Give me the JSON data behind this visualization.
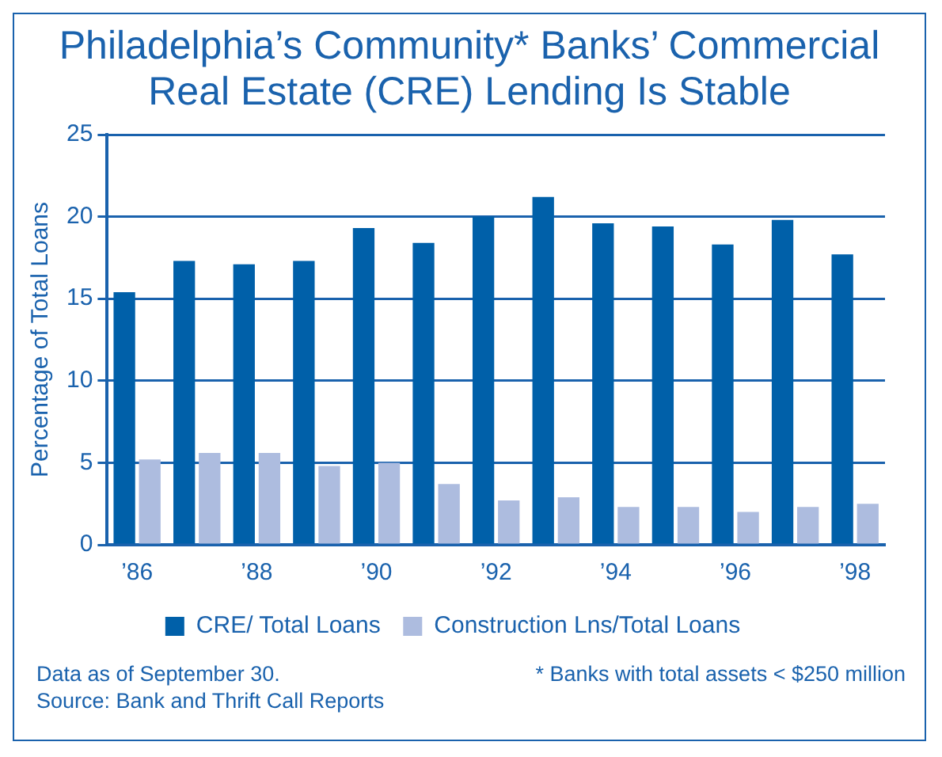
{
  "chart_data": {
    "type": "bar",
    "title": "Philadelphia’s Community* Banks’ Commercial Real Estate (CRE) Lending Is Stable",
    "ylabel": "Percentage of Total Loans",
    "categories": [
      "’86",
      null,
      "’88",
      null,
      "’90",
      null,
      "’92",
      null,
      "’94",
      null,
      "’96",
      null,
      "’98"
    ],
    "series": [
      {
        "name": "CRE/ Total Loans",
        "color": "#0060a9",
        "values": [
          15.4,
          17.3,
          17.1,
          17.3,
          19.3,
          18.4,
          20.0,
          21.2,
          19.6,
          19.4,
          18.3,
          19.8,
          17.7
        ]
      },
      {
        "name": "Construction Lns/Total Loans",
        "color": "#adbcdf",
        "values": [
          5.2,
          5.6,
          5.6,
          4.8,
          5.0,
          3.7,
          2.7,
          2.9,
          2.3,
          2.3,
          2.0,
          2.3,
          2.5
        ]
      }
    ],
    "ylim": [
      0,
      25
    ],
    "yticks": [
      0,
      5,
      10,
      15,
      20,
      25
    ],
    "grid": "y",
    "legend": "bottom",
    "annotations": [
      "Data as of September 30.\nSource: Bank and Thrift Call Reports",
      "* Banks with total assets < $250 million"
    ]
  }
}
